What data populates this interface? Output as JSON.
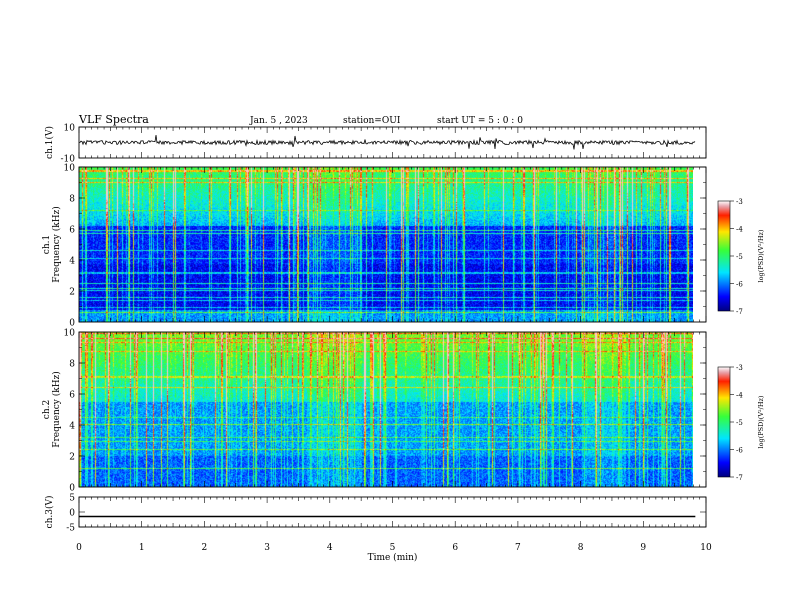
{
  "header": {
    "title": "VLF Spectra",
    "date": "Jan. 5 , 2023",
    "station": "station=OUI",
    "start": "start UT = 5 : 0 : 0"
  },
  "chart_data": [
    {
      "type": "line",
      "name": "waveform-ch1",
      "ylabel": "ch.1(V)",
      "ylim": [
        -10,
        10
      ],
      "y_ticks": [
        "10",
        "-10"
      ],
      "baseline_value": 0
    },
    {
      "type": "heatmap",
      "name": "spectrogram-ch1",
      "ylabel_line1": "ch.1",
      "ylabel_line2": "Frequency (kHz)",
      "ylim": [
        0,
        10
      ],
      "y_ticks": [
        "0",
        "2",
        "4",
        "6",
        "8",
        "10"
      ],
      "colorbar": {
        "label": "log(PSD)(V²/Hz)",
        "range": [
          -7,
          -3
        ],
        "ticks": [
          "-3",
          "-4",
          "-5",
          "-6",
          "-7"
        ]
      }
    },
    {
      "type": "heatmap",
      "name": "spectrogram-ch2",
      "ylabel_line1": "ch.2",
      "ylabel_line2": "Frequency (kHz)",
      "ylim": [
        0,
        10
      ],
      "y_ticks": [
        "0",
        "2",
        "4",
        "6",
        "8",
        "10"
      ],
      "colorbar": {
        "label": "log(PSD)(V²/Hz)",
        "range": [
          -7,
          -3
        ],
        "ticks": [
          "-3",
          "-4",
          "-5",
          "-6",
          "-7"
        ]
      }
    },
    {
      "type": "line",
      "name": "waveform-ch3",
      "ylabel": "ch.3(V)",
      "ylim": [
        -5,
        5
      ],
      "y_ticks": [
        "5",
        "0",
        "-5"
      ],
      "baseline_value": -1.5
    }
  ],
  "x_axis": {
    "label": "Time (min)",
    "xlim": [
      0,
      10
    ],
    "ticks": [
      "0",
      "1",
      "2",
      "3",
      "4",
      "5",
      "6",
      "7",
      "8",
      "9",
      "10"
    ],
    "data_end": 9.83
  }
}
